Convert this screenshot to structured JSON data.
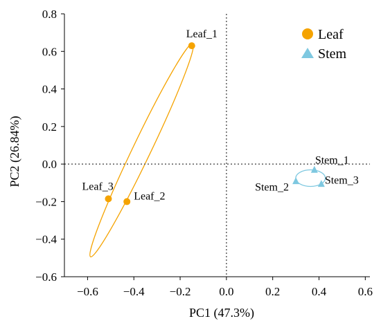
{
  "chart_data": {
    "type": "scatter",
    "title": "",
    "xlabel": "PC1 (47.3%)",
    "ylabel": "PC2 (26.84%)",
    "xlim": [
      -0.7,
      0.62
    ],
    "ylim": [
      -0.6,
      0.8
    ],
    "xticks": [
      -0.6,
      -0.4,
      -0.2,
      0.0,
      0.2,
      0.4,
      0.6
    ],
    "xtick_labels": [
      "−0.6",
      "−0.4",
      "−0.2",
      "0.0",
      "0.2",
      "0.4",
      "0.6"
    ],
    "yticks": [
      -0.6,
      -0.4,
      -0.2,
      0.0,
      0.2,
      0.4,
      0.6,
      0.8
    ],
    "ytick_labels": [
      "−0.6",
      "−0.4",
      "−0.2",
      "0.0",
      "0.2",
      "0.4",
      "0.6",
      "0.8"
    ],
    "grid": false,
    "reference_lines": {
      "x": 0,
      "y": 0,
      "style": "dotted"
    },
    "legend_position": "top-right",
    "series": [
      {
        "name": "Leaf",
        "marker": "circle",
        "color": "#F5A300",
        "points": [
          {
            "label": "Leaf_1",
            "x": -0.15,
            "y": 0.63
          },
          {
            "label": "Leaf_2",
            "x": -0.43,
            "y": -0.2
          },
          {
            "label": "Leaf_3",
            "x": -0.51,
            "y": -0.185
          }
        ]
      },
      {
        "name": "Stem",
        "marker": "triangle",
        "color": "#7EC8E0",
        "points": [
          {
            "label": "Stem_1",
            "x": 0.38,
            "y": -0.03
          },
          {
            "label": "Stem_2",
            "x": 0.3,
            "y": -0.09
          },
          {
            "label": "Stem_3",
            "x": 0.41,
            "y": -0.105
          }
        ]
      }
    ]
  }
}
